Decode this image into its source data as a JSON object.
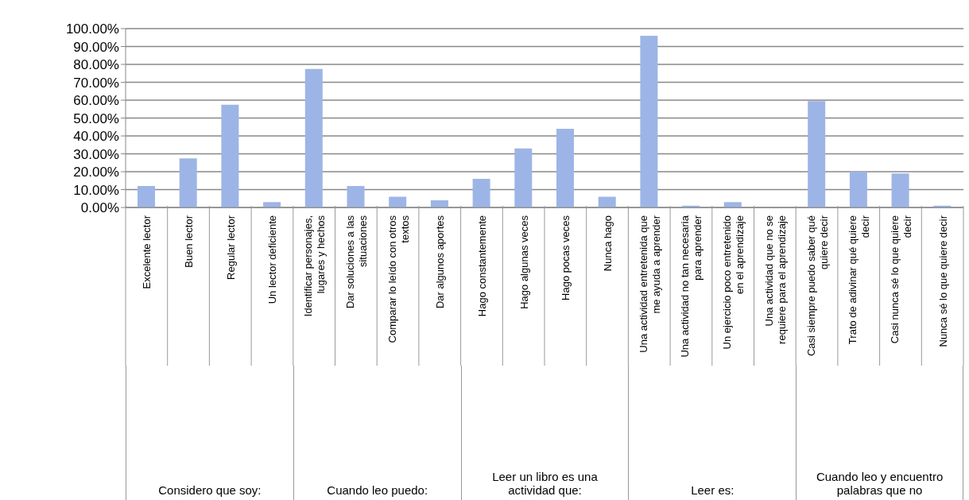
{
  "chart_data": {
    "type": "bar",
    "categories": [
      "Excelente lector",
      "Buen lector",
      "Regular lector",
      "Un lector deficiente",
      "Identificar personajes, lugares y hechos",
      "Dar soluciones a las situaciones",
      "Comparar lo leído con otros textos",
      "Dar algunos aportes",
      "Hago constantemente",
      "Hago algunas veces",
      "Hago pocas veces",
      "Nunca hago",
      "Una actividad entretenida que me ayuda a aprender",
      "Una actividad no tan necesaria para aprender",
      "Un ejercicio poco entretenido en el aprendizaje",
      "Una actividad que no se requiere para el aprendizaje",
      "Casi siempre puedo saber qué quiere decir",
      "Trato de adivinar qué quiere decir",
      "Casi nunca sé lo que quiere decir",
      "Nunca sé lo que quiere decir"
    ],
    "values": [
      12,
      27.5,
      57.5,
      3,
      77.5,
      12,
      6,
      4,
      16,
      33,
      44,
      6,
      96,
      1,
      3,
      0,
      59.5,
      20,
      19,
      1
    ],
    "color": "#9db5e6",
    "ylim": [
      0,
      100
    ],
    "yticks": [
      {
        "value": 0,
        "label": "0.00%"
      },
      {
        "value": 10,
        "label": "10.00%"
      },
      {
        "value": 20,
        "label": "20.00%"
      },
      {
        "value": 30,
        "label": "30.00%"
      },
      {
        "value": 40,
        "label": "40.00%"
      },
      {
        "value": 50,
        "label": "50.00%"
      },
      {
        "value": 60,
        "label": "60.00%"
      },
      {
        "value": 70,
        "label": "70.00%"
      },
      {
        "value": 80,
        "label": "80.00%"
      },
      {
        "value": 90,
        "label": "90.00%"
      },
      {
        "value": 100,
        "label": "100.00%"
      }
    ],
    "grid": "y",
    "annotations": [
      "Considero que soy:",
      "Cuando leo puedo:",
      "Leer un libro es una actividad que:",
      "Leer es:",
      "Cuando leo y encuentro palabras que no"
    ]
  }
}
